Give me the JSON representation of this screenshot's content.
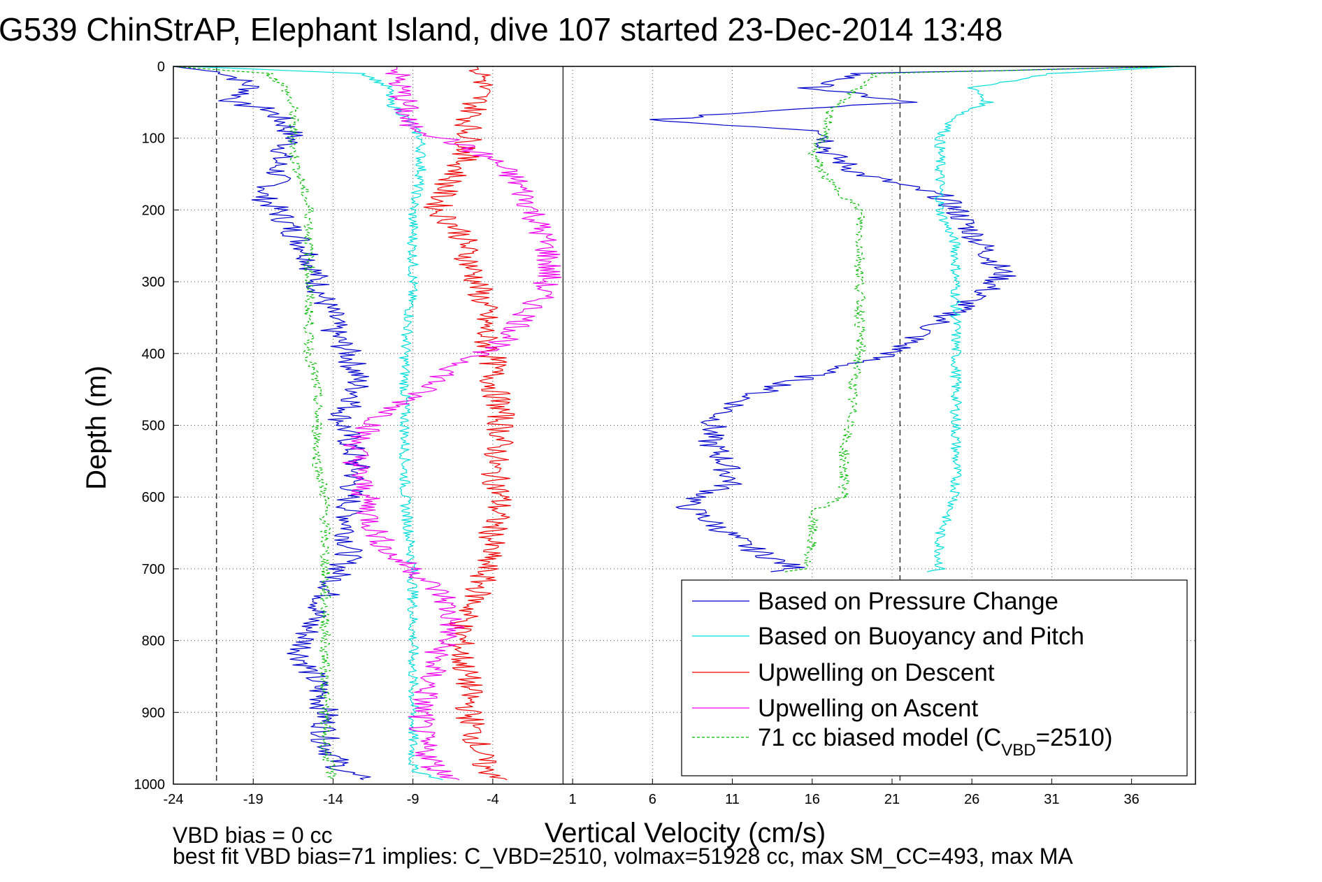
{
  "chart_data": {
    "type": "line",
    "title": "G539 ChinStrAP, Elephant Island, dive 107 started 23-Dec-2014 13:48",
    "xlabel": "Vertical Velocity (cm/s)",
    "ylabel": "Depth (m)",
    "xlim": [
      -24,
      40
    ],
    "ylim": [
      0,
      1000
    ],
    "y_reversed": true,
    "grid": true,
    "x_ticks": [
      -24,
      -19,
      -14,
      -9,
      -4,
      1,
      6,
      11,
      16,
      21,
      26,
      31,
      36
    ],
    "y_ticks": [
      0,
      100,
      200,
      300,
      400,
      500,
      600,
      700,
      800,
      900,
      1000
    ],
    "legend_position": "bottom-right",
    "reference_lines": [
      {
        "axis": "x",
        "value": -21.3,
        "style": "dashed"
      },
      {
        "axis": "x",
        "value": 0.4,
        "style": "solid"
      },
      {
        "axis": "x",
        "value": 21.5,
        "style": "dashed"
      }
    ],
    "series": [
      {
        "name": "Based on Pressure Change",
        "color": "#0000cc",
        "style": "solid",
        "branches": [
          {
            "depth": [
              0,
              10,
              30,
              50,
              60,
              80,
              100,
              130,
              160,
              180,
              200,
              230,
              260,
              300,
              330,
              350,
              370,
              400,
              430,
              460,
              490,
              520,
              560,
              600,
              640,
              680,
              700,
              740,
              780,
              820,
              860,
              900,
              940,
              980,
              995
            ],
            "velocity": [
              -24,
              -20.5,
              -19,
              -20.5,
              -18,
              -17,
              -16.5,
              -17.5,
              -17.5,
              -18.5,
              -17.5,
              -16.5,
              -15.5,
              -15,
              -14.5,
              -14,
              -14,
              -13,
              -12.5,
              -12.5,
              -13.5,
              -13,
              -12.5,
              -13,
              -13,
              -13,
              -13.5,
              -14.5,
              -15.5,
              -16,
              -15,
              -14.5,
              -14.5,
              -13.5,
              -12
            ]
          },
          {
            "depth": [
              0,
              10,
              30,
              50,
              60,
              75,
              90,
              120,
              150,
              180,
              200,
              230,
              260,
              290,
              310,
              340,
              370,
              400,
              430,
              460,
              490,
              520,
              550,
              580,
              610,
              640,
              670,
              700,
              705
            ],
            "velocity": [
              39,
              19,
              16,
              22,
              14,
              6,
              17,
              17,
              19,
              24,
              25,
              26,
              27,
              28,
              27,
              25,
              23,
              21,
              16,
              12,
              10,
              9.5,
              10.5,
              11,
              8,
              10,
              12,
              15,
              13
            ]
          }
        ]
      },
      {
        "name": "Based on Buoyancy and Pitch",
        "color": "#00dddd",
        "style": "solid",
        "branches": [
          {
            "depth": [
              0,
              10,
              30,
              50,
              70,
              100,
              150,
              200,
              250,
              300,
              400,
              500,
              600,
              700,
              800,
              900,
              980,
              995
            ],
            "velocity": [
              -23,
              -12,
              -10.5,
              -10.5,
              -9.5,
              -8.5,
              -8.5,
              -9,
              -9,
              -9,
              -9.5,
              -9.5,
              -9.5,
              -9,
              -9,
              -9,
              -9,
              -7
            ]
          },
          {
            "depth": [
              0,
              10,
              30,
              50,
              70,
              100,
              150,
              200,
              250,
              300,
              400,
              450,
              500,
              550,
              600,
              650,
              700,
              705
            ],
            "velocity": [
              39,
              31,
              26,
              27,
              25,
              24,
              24,
              24,
              25,
              25,
              25,
              25,
              25,
              25,
              25,
              24,
              24,
              23
            ]
          }
        ]
      },
      {
        "name": "Upwelling on Descent",
        "color": "#ee0000",
        "style": "solid",
        "branches": [
          {
            "depth": [
              0,
              20,
              50,
              80,
              110,
              140,
              170,
              200,
              230,
              270,
              300,
              340,
              380,
              400,
              440,
              480,
              520,
              560,
              600,
              650,
              700,
              740,
              780,
              820,
              860,
              900,
              940,
              980,
              995
            ],
            "velocity": [
              -5,
              -4.5,
              -5,
              -5.5,
              -5.5,
              -6,
              -7,
              -7.5,
              -6,
              -5.5,
              -5,
              -4.5,
              -4.5,
              -4,
              -4,
              -3.5,
              -3.5,
              -4,
              -3.5,
              -4,
              -4.5,
              -5,
              -6,
              -6,
              -5.5,
              -5.5,
              -5,
              -4.5,
              -3
            ]
          }
        ]
      },
      {
        "name": "Upwelling on Ascent",
        "color": "#ee00ee",
        "style": "solid",
        "branches": [
          {
            "depth": [
              0,
              20,
              50,
              80,
              100,
              130,
              160,
              200,
              230,
              260,
              290,
              320,
              350,
              380,
              400,
              430,
              460,
              490,
              520,
              560,
              600,
              640,
              680,
              700,
              740,
              780,
              820,
              860,
              900,
              940,
              980,
              995
            ],
            "velocity": [
              -10,
              -10,
              -9.5,
              -9.5,
              -7,
              -4,
              -2.5,
              -1.5,
              -1,
              -0.5,
              -0.5,
              -1,
              -2,
              -3,
              -5,
              -7,
              -9,
              -11,
              -12.5,
              -12.5,
              -12,
              -11.5,
              -10.5,
              -9,
              -7,
              -6.5,
              -7.5,
              -8,
              -8.5,
              -8.5,
              -7.5,
              -6
            ]
          }
        ]
      },
      {
        "name": "71 cc biased model (C_VBD=2510)",
        "color": "#00bb00",
        "style": "dashed",
        "branches": [
          {
            "depth": [
              0,
              10,
              30,
              60,
              90,
              120,
              160,
              200,
              260,
              300,
              360,
              400,
              450,
              500,
              550,
              600,
              650,
              700,
              750,
              800,
              850,
              900,
              950,
              995
            ],
            "velocity": [
              -24,
              -18,
              -17,
              -16.5,
              -16.5,
              -16.5,
              -16,
              -15.5,
              -15.5,
              -15.5,
              -15.5,
              -15.5,
              -15,
              -15,
              -15,
              -14.5,
              -14.5,
              -14.5,
              -14.5,
              -14.5,
              -14.5,
              -14.5,
              -14.5,
              -14
            ]
          },
          {
            "depth": [
              0,
              10,
              30,
              60,
              90,
              120,
              160,
              200,
              260,
              300,
              350,
              400,
              450,
              500,
              520,
              560,
              600,
              620,
              660,
              700,
              705
            ],
            "velocity": [
              39,
              20,
              19,
              17,
              17,
              16,
              17,
              19,
              19,
              19,
              19,
              19,
              18.5,
              18.5,
              18,
              18,
              18,
              16,
              16,
              15.5,
              14
            ]
          }
        ]
      }
    ],
    "legend": [
      {
        "label": "Based on Pressure Change",
        "color": "#0000cc",
        "style": "solid"
      },
      {
        "label": "Based on Buoyancy and Pitch",
        "color": "#00dddd",
        "style": "solid"
      },
      {
        "label": "Upwelling on Descent",
        "color": "#ee0000",
        "style": "solid"
      },
      {
        "label": "Upwelling on Ascent",
        "color": "#ee00ee",
        "style": "solid"
      },
      {
        "label_main": "71 cc biased model (C",
        "label_sub": "VBD",
        "label_end": "=2510)",
        "color": "#00bb00",
        "style": "dashed"
      }
    ]
  },
  "footer": {
    "line1": "VBD bias = 0 cc",
    "line2": "best fit VBD bias=71 implies: C_VBD=2510, volmax=51928 cc, max SM_CC=493, max MA"
  }
}
